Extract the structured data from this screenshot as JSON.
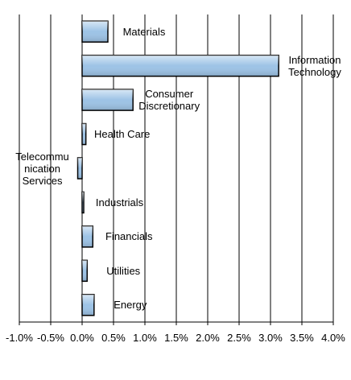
{
  "chart_data": {
    "type": "bar",
    "orientation": "horizontal",
    "categories": [
      "Materials",
      "Information Technology",
      "Consumer Discretionary",
      "Health Care",
      "Telecommunication Services",
      "Industrials",
      "Financials",
      "Utilities",
      "Energy"
    ],
    "values": [
      0.41,
      3.13,
      0.81,
      0.06,
      -0.07,
      0.02,
      0.17,
      0.08,
      0.19
    ],
    "color": "#9dc3e6",
    "xlim": [
      -1.0,
      4.0
    ],
    "xticks": [
      {
        "value": -1.0,
        "label": "-1.0%"
      },
      {
        "value": -0.5,
        "label": "-0.5%"
      },
      {
        "value": 0.0,
        "label": "0.0%"
      },
      {
        "value": 0.5,
        "label": "0.5%"
      },
      {
        "value": 1.0,
        "label": "1.0%"
      },
      {
        "value": 1.5,
        "label": "1.5%"
      },
      {
        "value": 2.0,
        "label": "2.0%"
      },
      {
        "value": 2.5,
        "label": "2.5%"
      },
      {
        "value": 3.0,
        "label": "3.0%"
      },
      {
        "value": 3.5,
        "label": "3.5%"
      },
      {
        "value": 4.0,
        "label": "4.0%"
      }
    ],
    "grid": true
  }
}
